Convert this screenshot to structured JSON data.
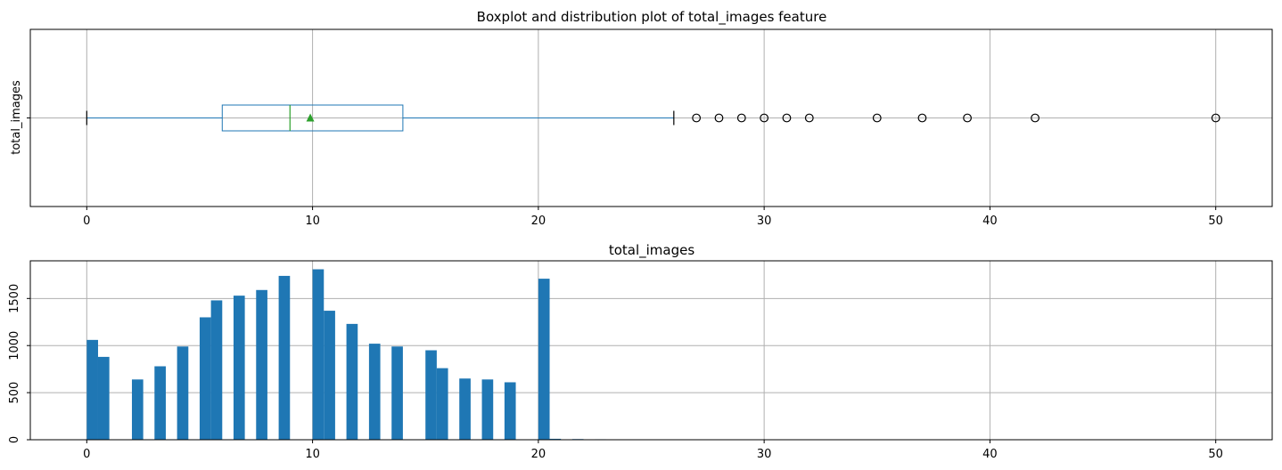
{
  "chart_data": [
    {
      "type": "box",
      "title": "Boxplot and distribution plot of total_images feature",
      "ylabel": "total_images",
      "orientation": "horizontal",
      "xlim": [
        -2.5,
        52.5
      ],
      "xticks": [
        0,
        10,
        20,
        30,
        40,
        50
      ],
      "xtick_labels": [
        "0",
        "10",
        "20",
        "30",
        "40",
        "50"
      ],
      "grid": true,
      "box": {
        "whisker_low": 0,
        "q1": 6,
        "median": 9,
        "mean": 9.9,
        "q3": 14,
        "whisker_high": 26
      },
      "outliers": [
        27,
        28,
        29,
        30,
        31,
        32,
        35,
        37,
        39,
        42,
        50
      ],
      "colors": {
        "box": "#1f77b4",
        "median": "#2ca02c",
        "mean_marker": "#2ca02c",
        "grid": "#b0b0b0"
      }
    },
    {
      "type": "histogram",
      "title": "total_images",
      "xlim": [
        -2.5,
        52.5
      ],
      "ylim": [
        0,
        1900
      ],
      "xticks": [
        0,
        10,
        20,
        30,
        40,
        50
      ],
      "xtick_labels": [
        "0",
        "10",
        "20",
        "30",
        "40",
        "50"
      ],
      "yticks": [
        0,
        500,
        1000,
        1500
      ],
      "ytick_labels": [
        "0",
        "500",
        "1000",
        "1500"
      ],
      "grid": true,
      "bins": 100,
      "bin_width": 0.5,
      "bin_start": 0,
      "bars": [
        {
          "x": 0,
          "count": 1060
        },
        {
          "x": 0.5,
          "count": 880
        },
        {
          "x": 2,
          "count": 640
        },
        {
          "x": 3,
          "count": 780
        },
        {
          "x": 4,
          "count": 990
        },
        {
          "x": 5,
          "count": 1300
        },
        {
          "x": 5.5,
          "count": 1480
        },
        {
          "x": 6.5,
          "count": 1530
        },
        {
          "x": 7.5,
          "count": 1590
        },
        {
          "x": 8.5,
          "count": 1740
        },
        {
          "x": 10,
          "count": 1810
        },
        {
          "x": 10.5,
          "count": 1370
        },
        {
          "x": 11.5,
          "count": 1230
        },
        {
          "x": 12.5,
          "count": 1020
        },
        {
          "x": 13.5,
          "count": 990
        },
        {
          "x": 15,
          "count": 950
        },
        {
          "x": 15.5,
          "count": 760
        },
        {
          "x": 16.5,
          "count": 650
        },
        {
          "x": 17.5,
          "count": 640
        },
        {
          "x": 18.5,
          "count": 610
        },
        {
          "x": 20,
          "count": 1710
        },
        {
          "x": 20.5,
          "count": 10
        },
        {
          "x": 21.5,
          "count": 7
        },
        {
          "x": 22.5,
          "count": 5
        },
        {
          "x": 23.5,
          "count": 4
        }
      ],
      "colors": {
        "bar": "#1f77b4",
        "grid": "#b0b0b0"
      }
    }
  ]
}
